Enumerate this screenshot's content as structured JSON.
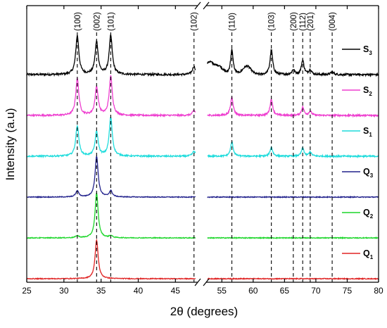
{
  "chart_data": {
    "type": "line",
    "xlabel": "2θ (degrees)",
    "ylabel": "Intensity (a.u)",
    "xlim": [
      25,
      80
    ],
    "axis_break": [
      48,
      52.5
    ],
    "x_ticks": [
      25,
      30,
      35,
      40,
      45,
      55,
      60,
      65,
      70,
      75,
      80
    ],
    "x_tick_labels": [
      "25",
      "30",
      "35",
      "40",
      "45",
      "55",
      "60",
      "65",
      "70",
      "75",
      "80"
    ],
    "y_ticks_shown": false,
    "grid": false,
    "legend_position": "right, beside each trace",
    "reference_lines": [
      {
        "label": "(100)",
        "x": 31.8
      },
      {
        "label": "(002)",
        "x": 34.4
      },
      {
        "label": "(101)",
        "x": 36.3
      },
      {
        "label": "(102)",
        "x": 47.5
      },
      {
        "label": "(110)",
        "x": 56.6
      },
      {
        "label": "(103)",
        "x": 62.9
      },
      {
        "label": "(200)",
        "x": 66.4
      },
      {
        "label": "(112)",
        "x": 67.9
      },
      {
        "label": "(201)",
        "x": 69.1
      },
      {
        "label": "(004)",
        "x": 72.6
      }
    ],
    "series": [
      {
        "name": "S3",
        "name_main": "S",
        "name_sub": "3",
        "color": "#000000",
        "offset": 5,
        "noise": 0.05,
        "peaks": [
          [
            31.8,
            0.95
          ],
          [
            34.4,
            0.8
          ],
          [
            36.3,
            0.95
          ],
          [
            47.5,
            0.2
          ],
          [
            56.6,
            0.6
          ],
          [
            62.9,
            0.6
          ],
          [
            66.4,
            0.12
          ],
          [
            67.9,
            0.35
          ],
          [
            69.1,
            0.12
          ],
          [
            72.6,
            0.07
          ]
        ],
        "humps": [
          [
            53,
            0.3
          ],
          [
            54.5,
            0.2
          ],
          [
            59,
            0.2
          ]
        ]
      },
      {
        "name": "S2",
        "name_main": "S",
        "name_sub": "2",
        "color": "#ee3ecf",
        "offset": 4,
        "noise": 0.04,
        "peaks": [
          [
            31.8,
            0.9
          ],
          [
            34.4,
            0.7
          ],
          [
            36.3,
            0.95
          ],
          [
            47.5,
            0.12
          ],
          [
            56.6,
            0.45
          ],
          [
            62.9,
            0.4
          ],
          [
            67.9,
            0.2
          ],
          [
            69.1,
            0.1
          ]
        ],
        "humps": []
      },
      {
        "name": "S1",
        "name_main": "S",
        "name_sub": "1",
        "color": "#1fdcdc",
        "offset": 3,
        "noise": 0.035,
        "peaks": [
          [
            31.8,
            0.75
          ],
          [
            34.4,
            0.6
          ],
          [
            36.3,
            0.95
          ],
          [
            47.5,
            0.12
          ],
          [
            56.6,
            0.35
          ],
          [
            62.9,
            0.22
          ],
          [
            67.9,
            0.2
          ],
          [
            69.1,
            0.1
          ]
        ],
        "humps": []
      },
      {
        "name": "Q3",
        "name_main": "Q",
        "name_sub": "3",
        "color": "#22228c",
        "offset": 2,
        "noise": 0.02,
        "peaks": [
          [
            31.8,
            0.15
          ],
          [
            34.4,
            1.0
          ],
          [
            36.3,
            0.15
          ]
        ],
        "humps": []
      },
      {
        "name": "Q2",
        "name_main": "Q",
        "name_sub": "2",
        "color": "#1cd62a",
        "offset": 1,
        "noise": 0.02,
        "peaks": [
          [
            31.8,
            0.05
          ],
          [
            34.4,
            1.1
          ],
          [
            36.3,
            0.05
          ]
        ],
        "humps": []
      },
      {
        "name": "Q1",
        "name_main": "Q",
        "name_sub": "1",
        "color": "#e02424",
        "offset": 0,
        "noise": 0.02,
        "peaks": [
          [
            34.4,
            0.95
          ]
        ],
        "humps": []
      }
    ]
  }
}
